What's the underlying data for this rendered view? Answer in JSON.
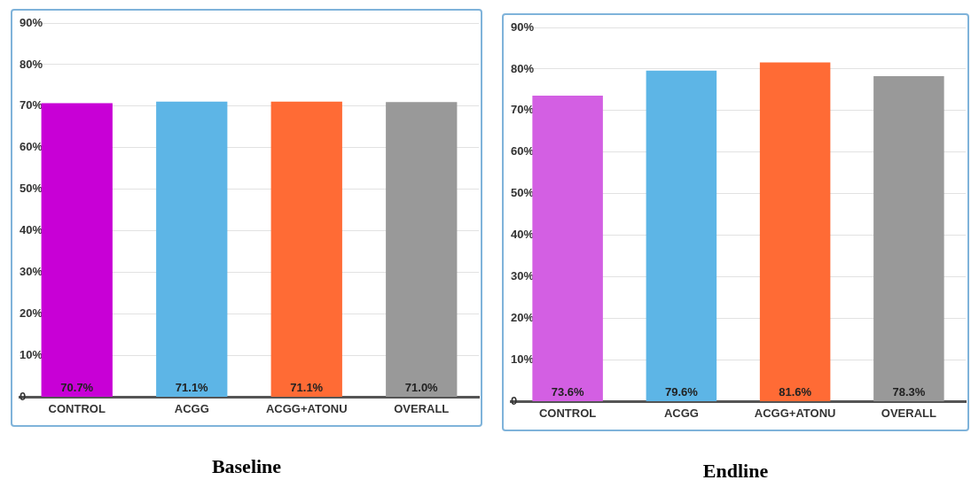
{
  "chart_data": [
    {
      "type": "bar",
      "title": "Baseline",
      "categories": [
        "CONTROL",
        "ACGG",
        "ACGG+ATONU",
        "OVERALL"
      ],
      "values": [
        70.7,
        71.1,
        71.1,
        71.0
      ],
      "colors": [
        "#c800d6",
        "#5db5e6",
        "#ff6b35",
        "#999999"
      ],
      "value_labels": [
        "70.7%",
        "71.1%",
        "71.1%",
        "71.0%"
      ],
      "ylim": [
        0,
        90
      ],
      "yticks": [
        {
          "value": 0,
          "label": "0"
        },
        {
          "value": 10,
          "label": "10%"
        },
        {
          "value": 20,
          "label": "20%"
        },
        {
          "value": 30,
          "label": "30%"
        },
        {
          "value": 40,
          "label": "40%"
        },
        {
          "value": 50,
          "label": "50%"
        },
        {
          "value": 60,
          "label": "60%"
        },
        {
          "value": 70,
          "label": "70%"
        },
        {
          "value": 80,
          "label": "80%"
        },
        {
          "value": 90,
          "label": "90%"
        }
      ],
      "grid": "y",
      "legend": false
    },
    {
      "type": "bar",
      "title": "Endline",
      "categories": [
        "CONTROL",
        "ACGG",
        "ACGG+ATONU",
        "OVERALL"
      ],
      "values": [
        73.6,
        79.6,
        81.6,
        78.3
      ],
      "colors": [
        "#d35fe3",
        "#5db5e6",
        "#ff6b35",
        "#999999"
      ],
      "value_labels": [
        "73.6%",
        "79.6%",
        "81.6%",
        "78.3%"
      ],
      "ylim": [
        0,
        90
      ],
      "yticks": [
        {
          "value": 0,
          "label": "0"
        },
        {
          "value": 10,
          "label": "10%"
        },
        {
          "value": 20,
          "label": "20%"
        },
        {
          "value": 30,
          "label": "30%"
        },
        {
          "value": 40,
          "label": "40%"
        },
        {
          "value": 50,
          "label": "50%"
        },
        {
          "value": 60,
          "label": "60%"
        },
        {
          "value": 70,
          "label": "70%"
        },
        {
          "value": 80,
          "label": "80%"
        },
        {
          "value": 90,
          "label": "90%"
        }
      ],
      "grid": "y",
      "legend": false
    }
  ]
}
